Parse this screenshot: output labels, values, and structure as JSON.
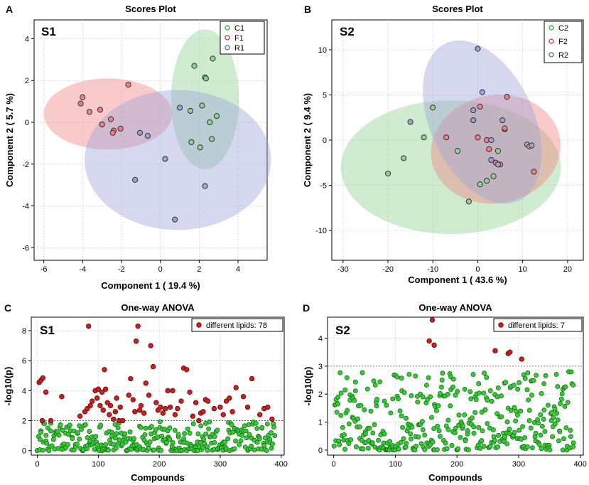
{
  "chart_data": [
    {
      "type": "scatter",
      "panel_label": "A",
      "sublabel": "S1",
      "title": "Scores Plot",
      "xlabel": "Component 1 ( 19.4 %)",
      "ylabel": "Component 2 ( 5.7 %)",
      "xlim": [
        -6.5,
        5.5
      ],
      "ylim": [
        -6.6,
        4.9
      ],
      "xticks": [
        -6,
        -4,
        -2,
        0,
        2,
        4
      ],
      "yticks": [
        -6,
        -4,
        -2,
        0,
        2,
        4
      ],
      "legend_position": "top-right",
      "series": [
        {
          "name": "C1",
          "color": "#2ca02c",
          "fill": "#8fd18f",
          "ellipse": {
            "cx": 2.3,
            "cy": 1.1,
            "rx": 1.75,
            "ry": 3.35,
            "angle_deg": 0
          },
          "points": [
            [
              1.75,
              2.7
            ],
            [
              2.7,
              3.05
            ],
            [
              2.3,
              2.15
            ],
            [
              2.35,
              2.1
            ],
            [
              1.55,
              0.55
            ],
            [
              2.15,
              0.8
            ],
            [
              2.9,
              0.3
            ],
            [
              2.55,
              0.0
            ],
            [
              1.6,
              -0.95
            ],
            [
              2.05,
              -1.2
            ],
            [
              2.65,
              -0.8
            ]
          ]
        },
        {
          "name": "F1",
          "color": "#d62728",
          "fill": "#f08080",
          "ellipse": {
            "cx": -2.7,
            "cy": 0.4,
            "rx": 3.3,
            "ry": 1.7,
            "angle_deg": 0
          },
          "points": [
            [
              -4.0,
              1.2
            ],
            [
              -4.1,
              0.9
            ],
            [
              -3.65,
              0.5
            ],
            [
              -3.1,
              0.6
            ],
            [
              -2.55,
              0.15
            ],
            [
              -3.0,
              -0.1
            ],
            [
              -2.05,
              -0.3
            ],
            [
              -2.4,
              -0.4
            ],
            [
              -2.45,
              -0.5
            ],
            [
              -1.65,
              1.8
            ]
          ]
        },
        {
          "name": "R1",
          "color": "#4c5fb0",
          "fill": "#9aa3d8",
          "ellipse": {
            "cx": 0.9,
            "cy": -1.8,
            "rx": 4.8,
            "ry": 3.35,
            "angle_deg": 0
          },
          "points": [
            [
              1.0,
              0.7
            ],
            [
              -1.05,
              -0.5
            ],
            [
              -0.65,
              -0.65
            ],
            [
              0.25,
              -1.75
            ],
            [
              -1.3,
              -2.75
            ],
            [
              2.3,
              -3.05
            ],
            [
              0.75,
              -4.65
            ]
          ]
        }
      ]
    },
    {
      "type": "scatter",
      "panel_label": "B",
      "sublabel": "S2",
      "title": "Scores Plot",
      "xlabel": "Component 1 ( 43.6 %)",
      "ylabel": "Component 2 ( 9.4 %)",
      "xlim": [
        -32.5,
        23.5
      ],
      "ylim": [
        -13.3,
        13.3
      ],
      "xticks": [
        -30,
        -20,
        -10,
        0,
        10,
        20
      ],
      "yticks": [
        -10,
        -5,
        0,
        5,
        10
      ],
      "legend_position": "top-right",
      "series": [
        {
          "name": "C2",
          "color": "#2ca02c",
          "fill": "#8fd18f",
          "ellipse": {
            "cx": -6.0,
            "cy": -3.0,
            "rx": 24.5,
            "ry": 7.4,
            "angle_deg": 0
          },
          "points": [
            [
              -20.0,
              -3.7
            ],
            [
              -16.5,
              -2.0
            ],
            [
              -12.0,
              0.3
            ],
            [
              -10.0,
              3.6
            ],
            [
              -4.5,
              -1.2
            ],
            [
              -2.0,
              -6.8
            ],
            [
              0.5,
              -4.9
            ],
            [
              2.0,
              -4.5
            ],
            [
              3.5,
              -4.0
            ],
            [
              4.5,
              -1.2
            ],
            [
              6.0,
              1.2
            ],
            [
              11.0,
              -0.5
            ]
          ]
        },
        {
          "name": "F2",
          "color": "#d62728",
          "fill": "#f08080",
          "ellipse": {
            "cx": 4.0,
            "cy": -1.0,
            "rx": 14.5,
            "ry": 6.0,
            "angle_deg": -10
          },
          "points": [
            [
              -7.0,
              0.3
            ],
            [
              0.5,
              3.7
            ],
            [
              6.5,
              4.8
            ],
            [
              0.0,
              0.3
            ],
            [
              2.0,
              0.0
            ],
            [
              2.5,
              -1.0
            ],
            [
              4.0,
              -2.5
            ],
            [
              6.0,
              1.3
            ],
            [
              11.5,
              -0.7
            ],
            [
              12.5,
              -3.5
            ],
            [
              5.0,
              -2.7
            ]
          ]
        },
        {
          "name": "R2",
          "color": "#4c5fb0",
          "fill": "#9aa3d8",
          "ellipse": {
            "cx": 1.0,
            "cy": 2.0,
            "rx": 11.5,
            "ry": 9.6,
            "angle_deg": -25
          },
          "points": [
            [
              0.0,
              10.1
            ],
            [
              -15.0,
              2.0
            ],
            [
              -1.0,
              3.3
            ],
            [
              -1.0,
              2.2
            ],
            [
              1.0,
              5.3
            ],
            [
              3.0,
              0.0
            ],
            [
              5.5,
              2.2
            ],
            [
              4.5,
              -2.7
            ],
            [
              3.0,
              -2.2
            ],
            [
              12.0,
              -0.6
            ]
          ]
        }
      ]
    },
    {
      "type": "scatter",
      "panel_label": "C",
      "sublabel": "S1",
      "title": "One-way ANOVA",
      "xlabel": "Compounds",
      "ylabel": "-log10(p)",
      "xlim": [
        -10,
        405
      ],
      "ylim": [
        -0.3,
        8.9
      ],
      "xticks": [
        0,
        100,
        200,
        300,
        400
      ],
      "yticks": [
        0,
        2,
        4,
        6,
        8
      ],
      "threshold": 2.0,
      "threshold_color": "#d62728",
      "n_points": 390,
      "legend_label": "different lipids: 78",
      "significant_points": [
        [
          3,
          4.55
        ],
        [
          6,
          4.7
        ],
        [
          8,
          2.0
        ],
        [
          9,
          4.85
        ],
        [
          14,
          3.9
        ],
        [
          22,
          2.0
        ],
        [
          40,
          3.6
        ],
        [
          70,
          2.3
        ],
        [
          78,
          2.6
        ],
        [
          82,
          2.8
        ],
        [
          84,
          8.3
        ],
        [
          87,
          3.0
        ],
        [
          90,
          3.3
        ],
        [
          95,
          4.0
        ],
        [
          98,
          3.5
        ],
        [
          100,
          4.1
        ],
        [
          103,
          3.0
        ],
        [
          106,
          3.9
        ],
        [
          108,
          2.7
        ],
        [
          110,
          5.4
        ],
        [
          112,
          4.1
        ],
        [
          115,
          3.2
        ],
        [
          118,
          2.4
        ],
        [
          120,
          3.0
        ],
        [
          125,
          2.1
        ],
        [
          128,
          2.6
        ],
        [
          130,
          3.5
        ],
        [
          134,
          2.0
        ],
        [
          136,
          2.9
        ],
        [
          140,
          2.0
        ],
        [
          150,
          3.7
        ],
        [
          153,
          4.8
        ],
        [
          157,
          3.4
        ],
        [
          160,
          2.6
        ],
        [
          162,
          7.3
        ],
        [
          165,
          8.3
        ],
        [
          168,
          2.7
        ],
        [
          170,
          3.0
        ],
        [
          175,
          2.5
        ],
        [
          178,
          4.5
        ],
        [
          183,
          3.7
        ],
        [
          186,
          7.0
        ],
        [
          190,
          5.6
        ],
        [
          195,
          3.2
        ],
        [
          198,
          2.7
        ],
        [
          202,
          2.9
        ],
        [
          206,
          2.5
        ],
        [
          210,
          2.8
        ],
        [
          214,
          4.0
        ],
        [
          218,
          2.9
        ],
        [
          222,
          4.0
        ],
        [
          226,
          2.4
        ],
        [
          230,
          2.8
        ],
        [
          236,
          3.3
        ],
        [
          240,
          5.5
        ],
        [
          245,
          5.4
        ],
        [
          250,
          3.9
        ],
        [
          255,
          2.3
        ],
        [
          260,
          3.2
        ],
        [
          265,
          2.0
        ],
        [
          268,
          2.5
        ],
        [
          272,
          2.6
        ],
        [
          276,
          3.4
        ],
        [
          280,
          3.3
        ],
        [
          290,
          2.8
        ],
        [
          300,
          2.9
        ],
        [
          305,
          2.4
        ],
        [
          310,
          3.3
        ],
        [
          315,
          3.5
        ],
        [
          320,
          2.6
        ],
        [
          326,
          4.2
        ],
        [
          338,
          3.6
        ],
        [
          345,
          2.9
        ],
        [
          352,
          4.8
        ],
        [
          365,
          2.4
        ],
        [
          372,
          2.8
        ],
        [
          378,
          2.9
        ],
        [
          385,
          2.1
        ]
      ]
    },
    {
      "type": "scatter",
      "panel_label": "D",
      "sublabel": "S2",
      "title": "One-way ANOVA",
      "xlabel": "Compounds",
      "ylabel": "-log10(p)",
      "xlim": [
        -10,
        405
      ],
      "ylim": [
        -0.18,
        4.75
      ],
      "xticks": [
        0,
        100,
        200,
        300,
        400
      ],
      "yticks": [
        0,
        1,
        2,
        3,
        4
      ],
      "threshold": 3.0,
      "threshold_color": "#888888",
      "n_points": 390,
      "legend_label": "different lipids: 7",
      "significant_points": [
        [
          155,
          3.9
        ],
        [
          160,
          4.65
        ],
        [
          163,
          3.75
        ],
        [
          262,
          3.55
        ],
        [
          283,
          3.45
        ],
        [
          286,
          3.5
        ],
        [
          305,
          3.25
        ]
      ]
    }
  ]
}
